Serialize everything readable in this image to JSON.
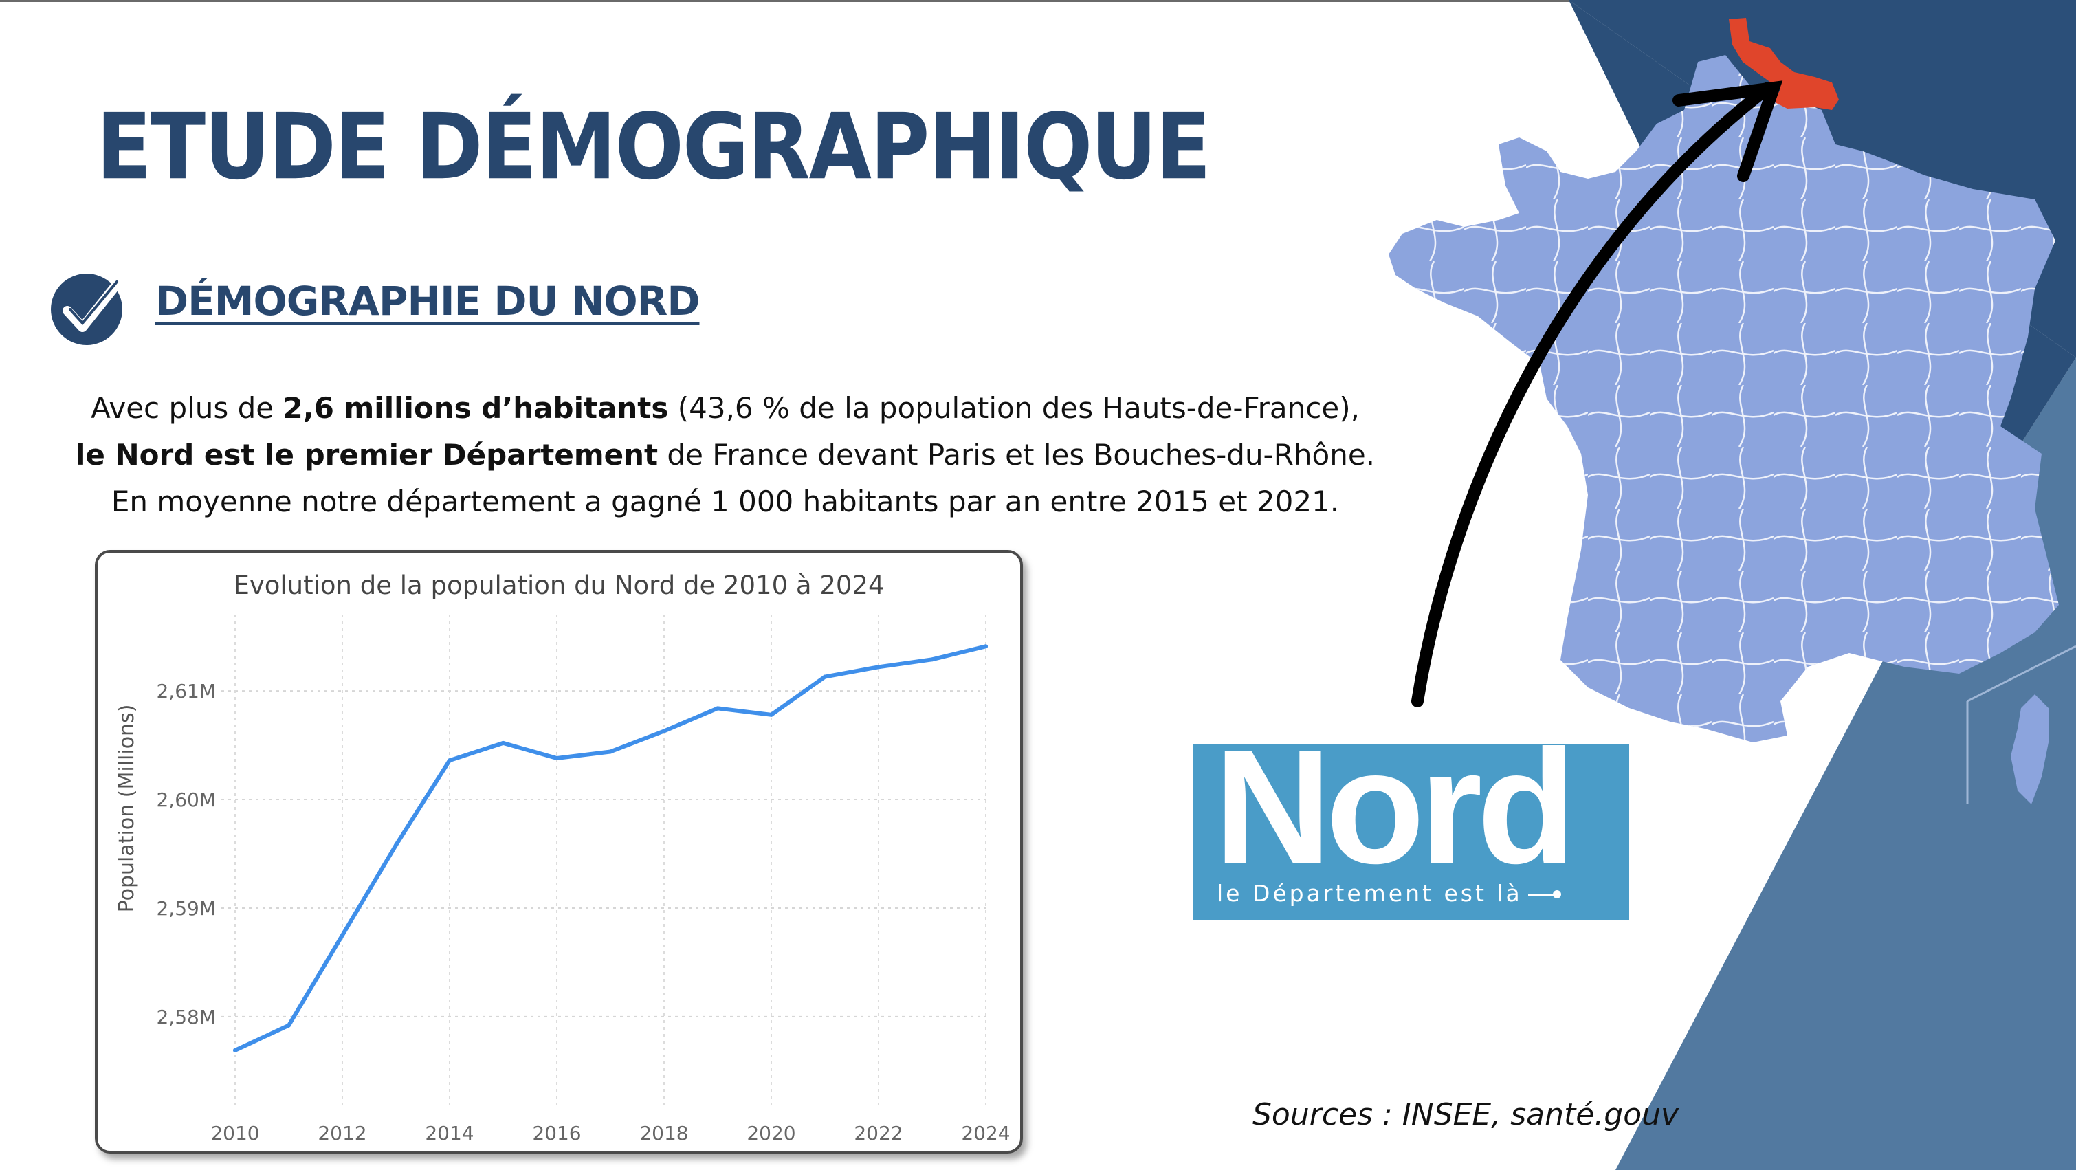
{
  "page": {
    "title": "ETUDE DÉMOGRAPHIQUE",
    "section_heading": "DÉMOGRAPHIE DU NORD",
    "intro": {
      "line1_pre": "Avec  plus de ",
      "line1_bold": "2,6 millions d’habitants",
      "line1_post": " (43,6 % de la population des Hauts-de-France),",
      "line2_bold": "le Nord est le premier Département",
      "line2_post": " de France devant Paris et les Bouches-du-Rhône.",
      "line3": "En moyenne notre département a gagné 1 000 habitants par an entre 2015 et 2021."
    },
    "sources": "Sources : INSEE, santé.gouv",
    "logo": {
      "word": "Nord",
      "tagline": "le Département est là"
    }
  },
  "colors": {
    "title": "#28476e",
    "bg_dark": "#2b4f79",
    "bg_light": "#5279a0",
    "map_fill": "#8ca4dd",
    "map_highlight": "#e0452b",
    "logo_bg": "#4a9cc8",
    "line": "#3f8fea"
  },
  "icons": {
    "check": "check-circle-icon",
    "arrow": "curved-arrow-icon",
    "map": "france-map-icon"
  },
  "chart_data": {
    "type": "line",
    "title": "Evolution de la population du Nord de 2010 à 2024",
    "xlabel": "",
    "ylabel": "Population (Millions)",
    "x": [
      2010,
      2011,
      2012,
      2013,
      2014,
      2015,
      2016,
      2017,
      2018,
      2019,
      2020,
      2021,
      2022,
      2023,
      2024
    ],
    "values": [
      2.5769,
      2.5792,
      2.5875,
      2.5958,
      2.6036,
      2.6052,
      2.6038,
      2.6044,
      2.6063,
      2.6084,
      2.6078,
      2.6113,
      2.6122,
      2.6129,
      2.6141
    ],
    "xlim": [
      2010,
      2024
    ],
    "ylim": [
      2.5736,
      2.6164
    ],
    "xticks": [
      2010,
      2012,
      2014,
      2016,
      2018,
      2020,
      2022,
      2024
    ],
    "xtick_labels": [
      "2010",
      "2012",
      "2014",
      "2016",
      "2018",
      "2020",
      "2022",
      "2024"
    ],
    "yticks": [
      2.58,
      2.59,
      2.6,
      2.61
    ],
    "ytick_labels": [
      "2,58M",
      "2,59M",
      "2,60M",
      "2,61M"
    ],
    "grid": true,
    "legend": "none"
  }
}
